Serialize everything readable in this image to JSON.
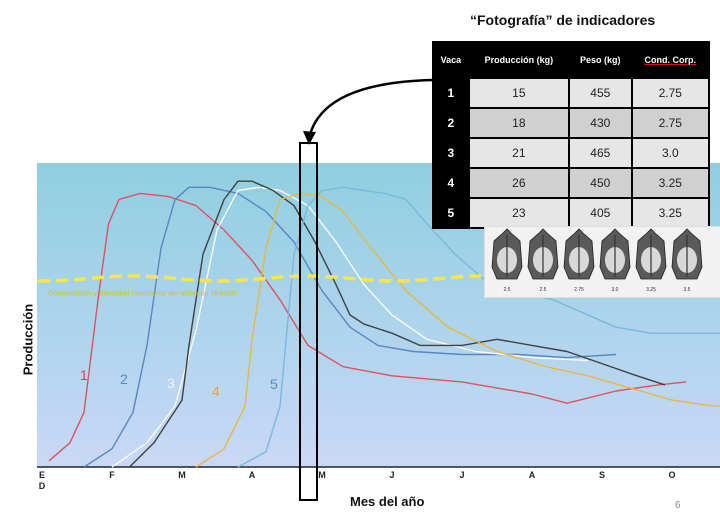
{
  "slide": {
    "page_number": "6"
  },
  "inset_table": {
    "title": "“Fotografía” de indicadores",
    "headers": [
      "Vaca",
      "Producción (kg)",
      "Peso (kg)",
      "Cond. Corp."
    ],
    "rows": [
      [
        "1",
        "15",
        "455",
        "2.75"
      ],
      [
        "2",
        "18",
        "430",
        "2.75"
      ],
      [
        "3",
        "21",
        "465",
        "3.0"
      ],
      [
        "4",
        "26",
        "450",
        "3.25"
      ],
      [
        "5",
        "23",
        "405",
        "3.25"
      ]
    ]
  },
  "condition_photos": {
    "labels": [
      "2.5",
      "2.5",
      "2.75",
      "3.0",
      "3.25",
      "3.5"
    ]
  },
  "chart_data": {
    "type": "line",
    "xlabel": "Mes del año",
    "ylabel": "Producción",
    "categories": [
      "E",
      "F",
      "M",
      "A",
      "M",
      "J",
      "J",
      "A",
      "S",
      "O"
    ],
    "extra_tick_label": "D",
    "ylim": [
      0,
      100
    ],
    "threshold_label": "Composición y densidad nutricional del alimento ofrecido",
    "threshold_value": 62,
    "highlight_month": "M",
    "series_labels": [
      "1",
      "2",
      "3",
      "4",
      "5"
    ],
    "series": [
      {
        "color": "#e05060",
        "label": "1",
        "points": [
          [
            0.1,
            2
          ],
          [
            0.4,
            8
          ],
          [
            0.6,
            18
          ],
          [
            0.8,
            55
          ],
          [
            0.95,
            80
          ],
          [
            1.1,
            88
          ],
          [
            1.4,
            90
          ],
          [
            1.8,
            89
          ],
          [
            2.2,
            86
          ],
          [
            2.6,
            78
          ],
          [
            3.0,
            68
          ],
          [
            3.4,
            55
          ],
          [
            3.8,
            40
          ],
          [
            4.3,
            33
          ],
          [
            5.0,
            30
          ],
          [
            6.0,
            28
          ],
          [
            7.0,
            24
          ],
          [
            7.5,
            21
          ],
          [
            8.2,
            25
          ],
          [
            8.8,
            27
          ],
          [
            9.2,
            28
          ]
        ]
      },
      {
        "color": "#5b84c4",
        "label": "2",
        "points": [
          [
            0.6,
            0
          ],
          [
            1.0,
            6
          ],
          [
            1.3,
            18
          ],
          [
            1.5,
            40
          ],
          [
            1.7,
            72
          ],
          [
            1.9,
            88
          ],
          [
            2.1,
            92
          ],
          [
            2.4,
            92
          ],
          [
            2.8,
            90
          ],
          [
            3.2,
            84
          ],
          [
            3.6,
            74
          ],
          [
            4.0,
            58
          ],
          [
            4.4,
            46
          ],
          [
            4.8,
            40
          ],
          [
            5.3,
            38
          ],
          [
            6.0,
            37
          ],
          [
            6.8,
            37
          ],
          [
            7.5,
            36
          ],
          [
            8.2,
            37
          ]
        ]
      },
      {
        "color": "#fafafa",
        "label": "3",
        "points": [
          [
            1.0,
            0
          ],
          [
            1.5,
            8
          ],
          [
            1.9,
            20
          ],
          [
            2.2,
            45
          ],
          [
            2.5,
            78
          ],
          [
            2.8,
            91
          ],
          [
            3.1,
            92
          ],
          [
            3.4,
            91
          ],
          [
            3.8,
            86
          ],
          [
            4.2,
            74
          ],
          [
            4.6,
            60
          ],
          [
            5.0,
            50
          ],
          [
            5.5,
            42
          ],
          [
            6.2,
            38
          ],
          [
            7.0,
            36
          ],
          [
            7.8,
            35
          ]
        ]
      },
      {
        "color": "#404040",
        "label": "3",
        "points": [
          [
            1.25,
            0
          ],
          [
            1.6,
            8
          ],
          [
            2.0,
            22
          ],
          [
            2.1,
            40
          ],
          [
            2.3,
            70
          ],
          [
            2.6,
            88
          ],
          [
            2.8,
            94
          ],
          [
            3.0,
            94
          ],
          [
            3.3,
            91
          ],
          [
            3.6,
            86
          ],
          [
            3.9,
            74
          ],
          [
            4.2,
            60
          ],
          [
            4.4,
            50
          ],
          [
            4.6,
            47
          ],
          [
            5.0,
            44
          ],
          [
            5.4,
            40
          ],
          [
            6.0,
            40
          ],
          [
            6.5,
            42
          ],
          [
            7.0,
            40
          ],
          [
            7.5,
            38
          ],
          [
            8.0,
            34
          ],
          [
            8.5,
            30
          ],
          [
            8.9,
            27
          ]
        ]
      },
      {
        "color": "#e8b840",
        "label": "4",
        "points": [
          [
            2.2,
            0
          ],
          [
            2.6,
            6
          ],
          [
            2.9,
            20
          ],
          [
            3.0,
            42
          ],
          [
            3.2,
            72
          ],
          [
            3.4,
            88
          ],
          [
            3.7,
            90
          ],
          [
            4.0,
            89
          ],
          [
            4.3,
            84
          ],
          [
            4.7,
            72
          ],
          [
            5.2,
            58
          ],
          [
            5.8,
            46
          ],
          [
            6.5,
            38
          ],
          [
            7.2,
            33
          ],
          [
            7.8,
            30
          ],
          [
            8.4,
            26
          ],
          [
            9.0,
            22
          ],
          [
            9.6,
            20
          ],
          [
            10.0,
            20
          ]
        ]
      },
      {
        "color": "#7ab8dc",
        "label": "5",
        "points": [
          [
            2.8,
            0
          ],
          [
            3.2,
            5
          ],
          [
            3.4,
            20
          ],
          [
            3.5,
            45
          ],
          [
            3.6,
            70
          ],
          [
            3.8,
            86
          ],
          [
            4.0,
            91
          ],
          [
            4.3,
            92
          ],
          [
            4.6,
            91
          ],
          [
            4.9,
            90
          ],
          [
            5.2,
            88
          ],
          [
            5.5,
            80
          ],
          [
            5.9,
            70
          ],
          [
            6.3,
            62
          ],
          [
            6.8,
            58
          ],
          [
            7.3,
            55
          ],
          [
            7.8,
            50
          ],
          [
            8.2,
            46
          ],
          [
            8.7,
            44
          ],
          [
            9.2,
            44
          ],
          [
            9.8,
            44
          ]
        ]
      }
    ]
  }
}
